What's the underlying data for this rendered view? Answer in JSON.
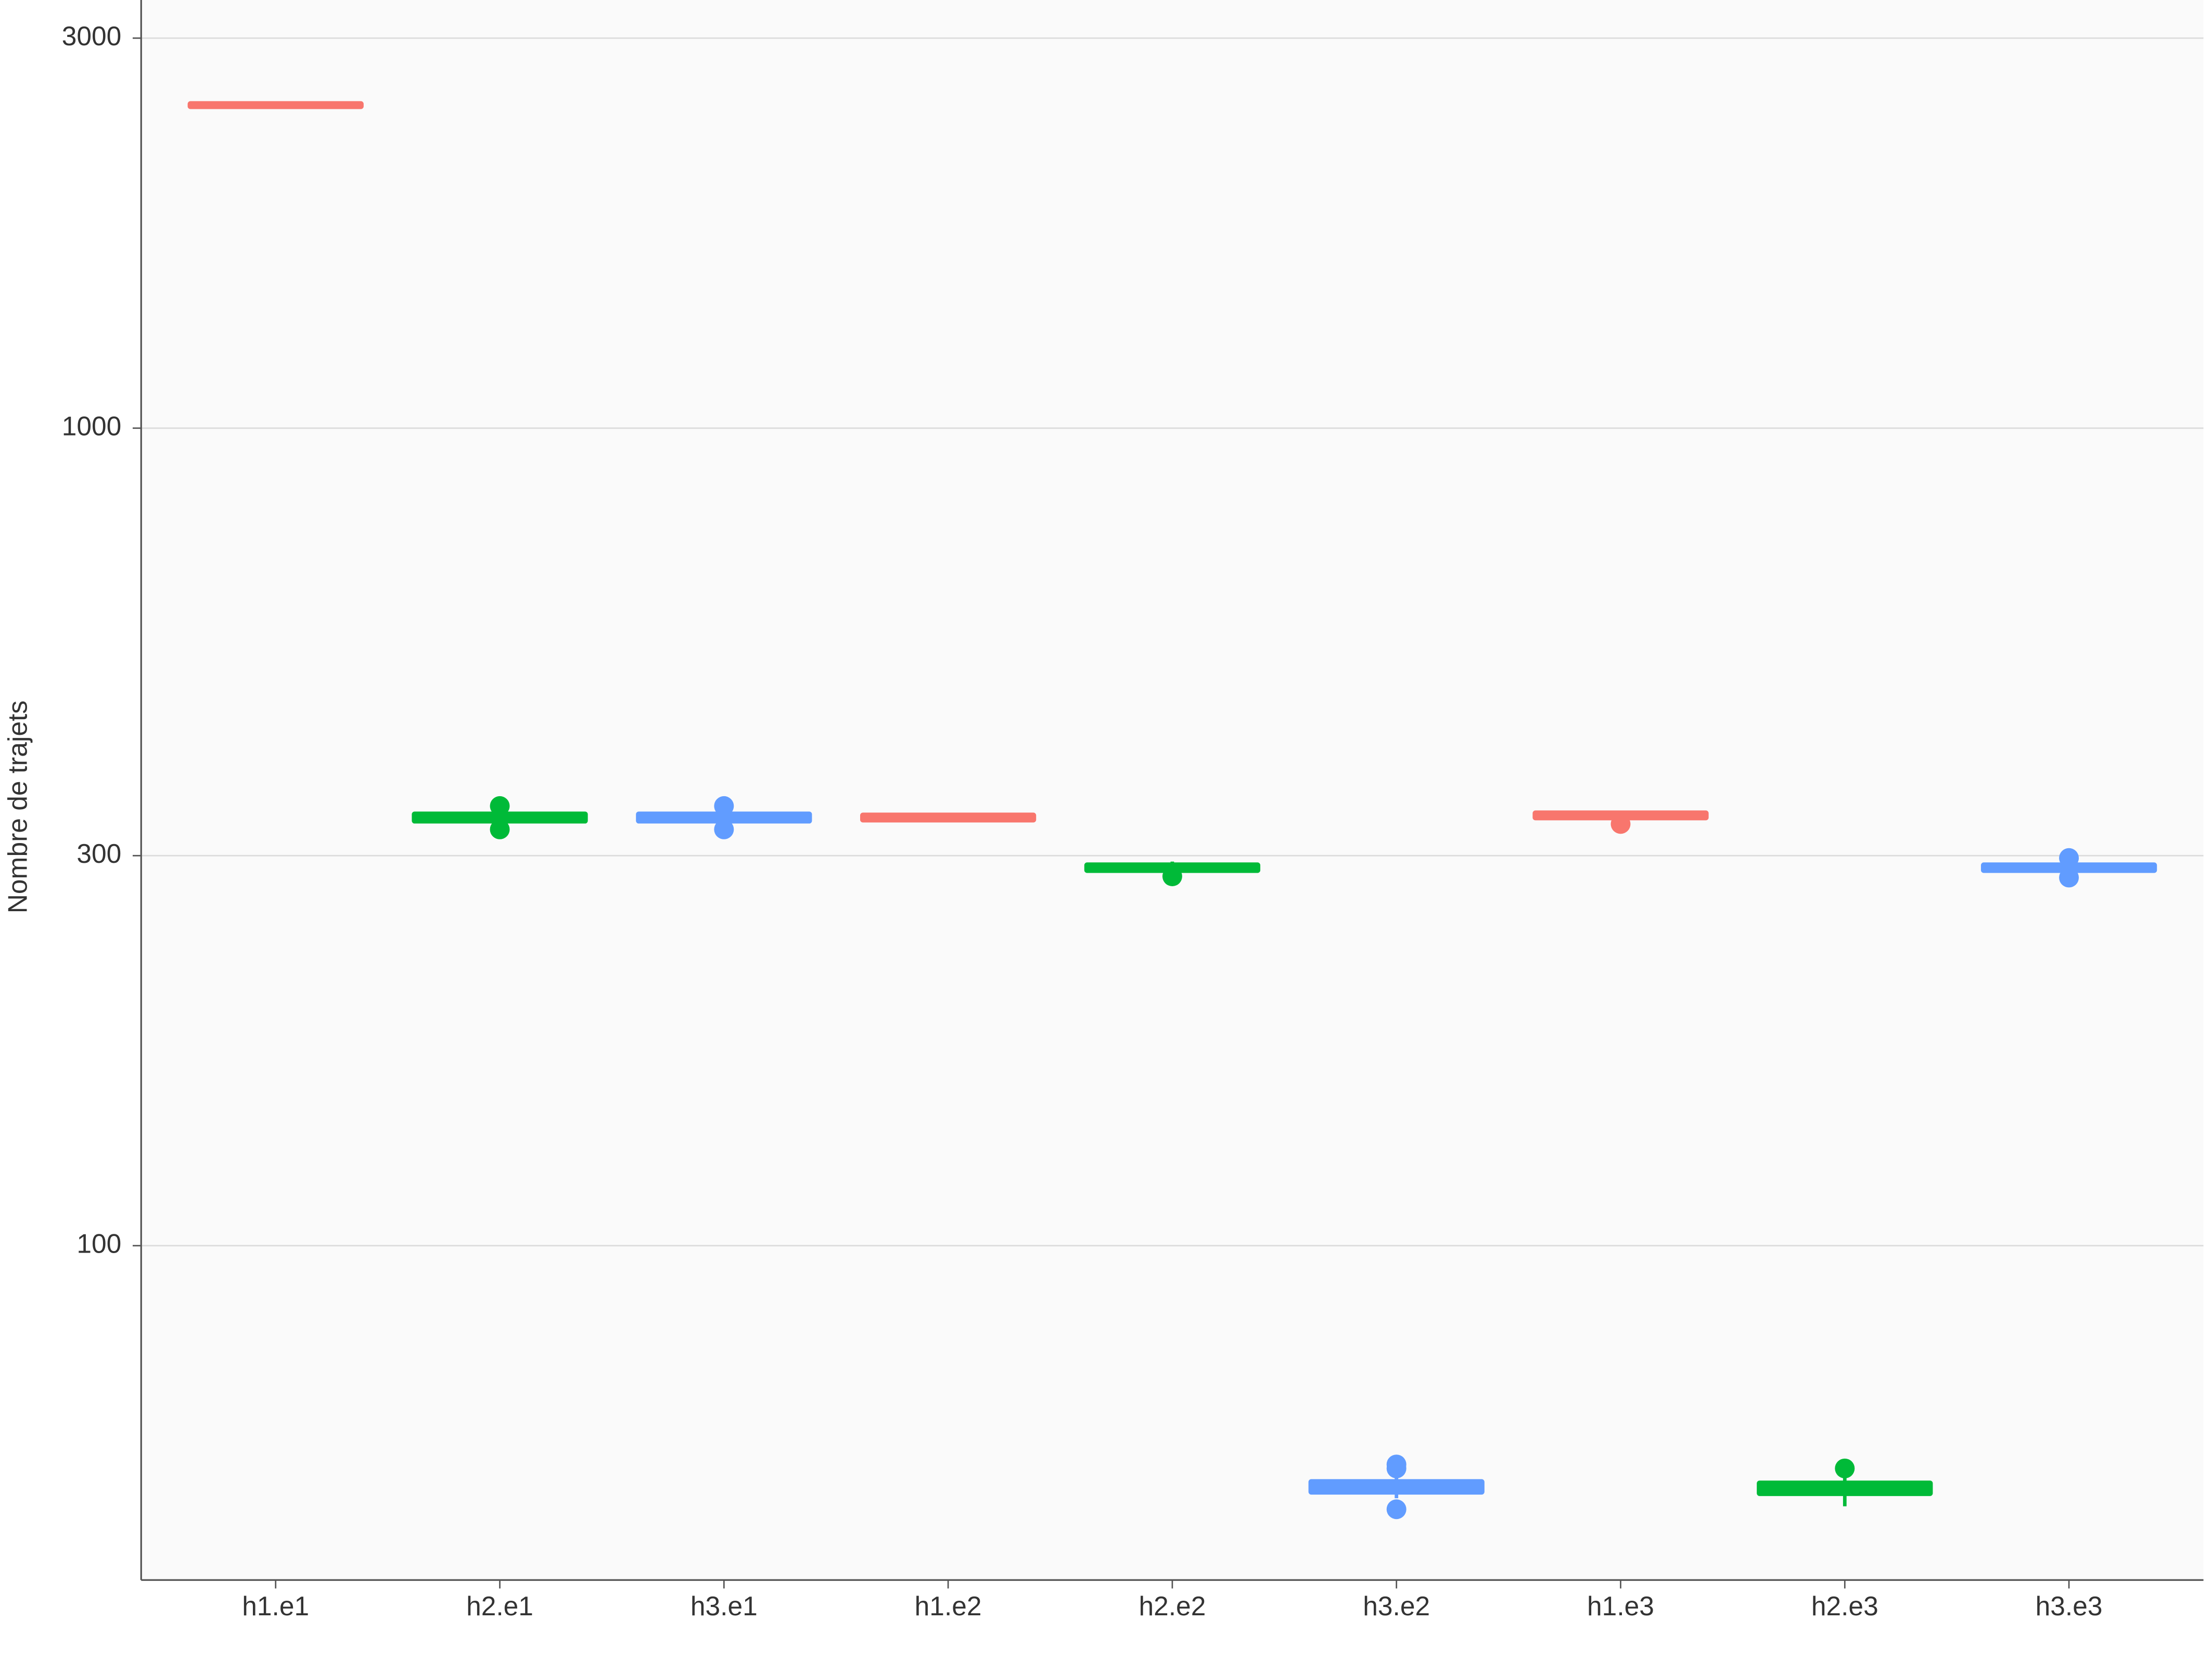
{
  "chart_data": {
    "type": "box",
    "y_label": "Nombre de trajets",
    "log_scale": true,
    "grid": true,
    "categories": [
      "h1.e1",
      "h2.e1",
      "h3.e1",
      "h1.e2",
      "h2.e2",
      "h3.e2",
      "h1.e3",
      "h2.e3",
      "h3.e3"
    ],
    "colors": [
      "#f8766d",
      "#00ba38",
      "#619cff",
      "#f8766d",
      "#00ba38",
      "#619cff",
      "#f8766d",
      "#00ba38",
      "#619cff"
    ],
    "boxes": [
      {
        "low": 2470,
        "q1": 2476,
        "median": 2484,
        "q3": 2492,
        "high": 2500,
        "outliers": []
      },
      {
        "low": 330,
        "q1": 331,
        "median": 334,
        "q3": 337,
        "high": 338,
        "outliers": [
          345,
          323
        ]
      },
      {
        "low": 330,
        "q1": 331,
        "median": 334,
        "q3": 337,
        "high": 338,
        "outliers": [
          345,
          323
        ]
      },
      {
        "low": 330,
        "q1": 332,
        "median": 334,
        "q3": 336,
        "high": 338,
        "outliers": []
      },
      {
        "low": 288,
        "q1": 288,
        "median": 290,
        "q3": 292,
        "high": 295,
        "outliers": [
          283
        ]
      },
      {
        "low": 49.1,
        "q1": 50.0,
        "median": 50.7,
        "q3": 51.4,
        "high": 52.4,
        "outliers": [
          54.0,
          53.4,
          47.6
        ]
      },
      {
        "low": 333,
        "q1": 334,
        "median": 336,
        "q3": 338,
        "high": 339,
        "outliers": [
          328
        ]
      },
      {
        "low": 48.0,
        "q1": 49.8,
        "median": 50.5,
        "q3": 51.2,
        "high": 52.2,
        "outliers": [
          53.4
        ]
      },
      {
        "low": 287,
        "q1": 288,
        "median": 290,
        "q3": 292,
        "high": 293,
        "outliers": [
          298,
          282
        ]
      }
    ],
    "ylim": [
      39,
      3340
    ],
    "yticks": [
      100,
      300,
      1000,
      3000
    ]
  }
}
